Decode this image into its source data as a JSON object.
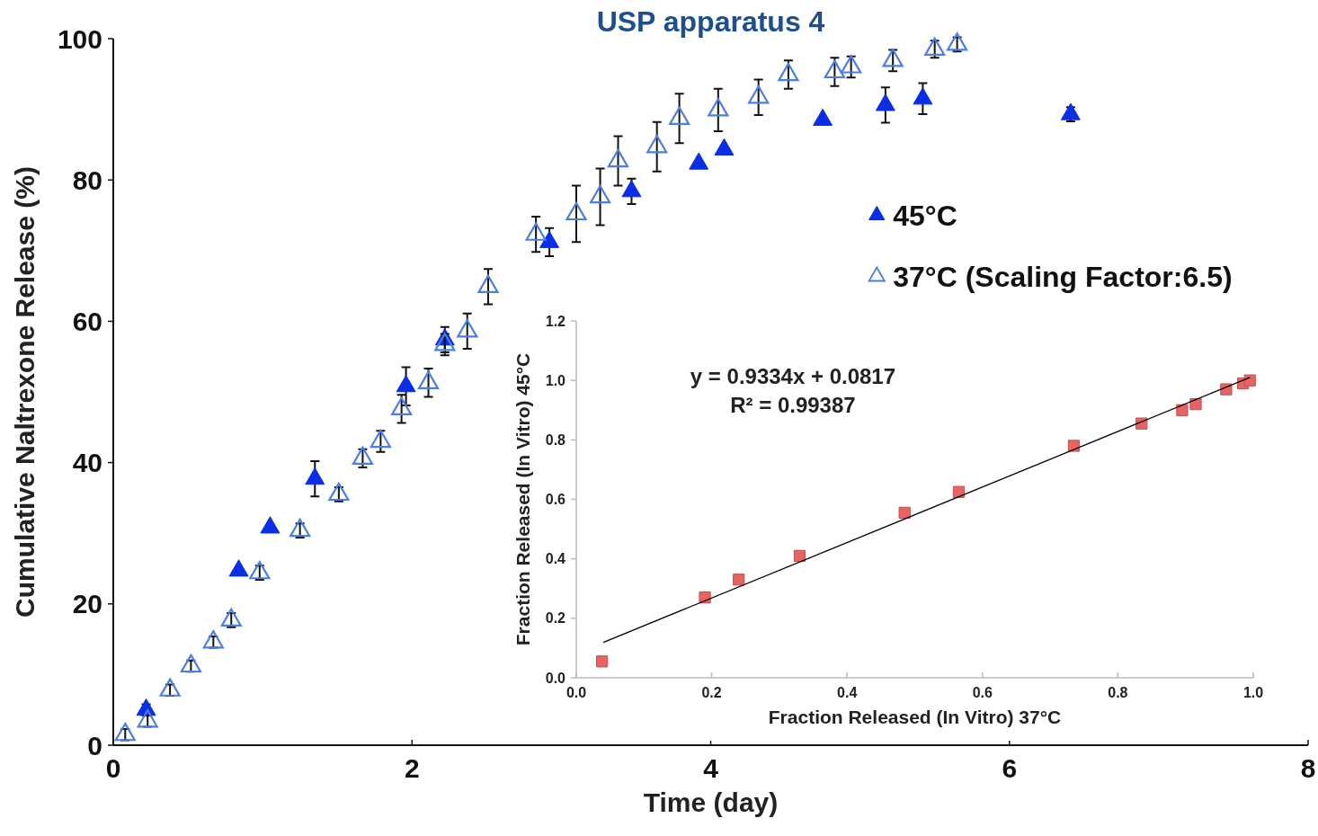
{
  "chart_data": [
    {
      "type": "scatter",
      "title": "USP apparatus 4",
      "xlabel": "Time (day)",
      "ylabel": "Cumulative Naltrexone Release (%)",
      "xlim": [
        0,
        8
      ],
      "xticks": [
        0,
        2,
        4,
        6,
        8
      ],
      "ylim": [
        0,
        100
      ],
      "yticks": [
        0,
        20,
        40,
        60,
        80,
        100
      ],
      "legend": "right",
      "marker": "triangle",
      "grid": false,
      "series": [
        {
          "name": "45°C",
          "color": "#0a2ee6",
          "x": [
            0.22,
            0.84,
            1.05,
            1.35,
            1.96,
            2.22,
            2.92,
            3.47,
            3.92,
            4.09,
            4.75,
            5.17,
            5.42,
            6.41
          ],
          "values": [
            5.0,
            24.7,
            30.8,
            37.7,
            50.8,
            57.4,
            71.2,
            78.4,
            82.3,
            84.3,
            88.5,
            90.6,
            91.5,
            89.3
          ],
          "errors": [
            0.8,
            null,
            null,
            2.5,
            2.7,
            1.8,
            2,
            1.8,
            null,
            null,
            null,
            2.5,
            2.2,
            1
          ]
        },
        {
          "name": "37°C (Scaling Factor:6.5)",
          "color": "#4a7ee0",
          "x": [
            0.08,
            0.23,
            0.38,
            0.52,
            0.67,
            0.79,
            0.98,
            1.25,
            1.51,
            1.67,
            1.79,
            1.93,
            2.11,
            2.22,
            2.37,
            2.51,
            2.83,
            3.1,
            3.26,
            3.38,
            3.64,
            3.79,
            4.05,
            4.32,
            4.52,
            4.83,
            4.94,
            5.22,
            5.5,
            5.65
          ],
          "values": [
            1.5,
            3.4,
            7.8,
            11.2,
            14.6,
            17.7,
            24.4,
            30.4,
            35.5,
            40.6,
            43.0,
            47.6,
            51.3,
            56.7,
            58.6,
            64.9,
            72.3,
            75.2,
            77.6,
            82.7,
            84.7,
            88.7,
            89.9,
            91.7,
            94.9,
            95.3,
            96.0,
            96.9,
            98.5,
            99.2
          ],
          "errors": [
            0.8,
            0.8,
            0.8,
            0.8,
            0.8,
            1,
            1,
            1,
            1,
            1.3,
            1.5,
            2,
            2,
            1.5,
            2.5,
            2.5,
            2.5,
            4,
            4,
            3.5,
            3.5,
            3.5,
            3,
            2.5,
            2,
            2,
            1.5,
            1.5,
            1.2,
            1
          ]
        }
      ]
    },
    {
      "type": "scatter",
      "xlabel": "Fraction Released (In Vitro) 37°C",
      "ylabel": "Fraction Released (In Vitro) 45°C",
      "xlim": [
        0,
        1
      ],
      "xticks": [
        {
          "value": 0,
          "label": "0.0"
        },
        0.2,
        0.4,
        0.6,
        0.8,
        {
          "value": 1,
          "label": "1.0"
        }
      ],
      "ylim": [
        0,
        1.2
      ],
      "yticks": [
        {
          "value": 0,
          "label": "0.0"
        },
        0.2,
        0.4,
        0.6,
        0.8,
        {
          "value": 1,
          "label": "1.0"
        },
        1.2
      ],
      "grid": false,
      "annotations": [
        "y = 0.9334x + 0.0817",
        "R² = 0.99387"
      ],
      "series": [
        {
          "color": "#e86464",
          "marker": "square",
          "x": [
            0.038,
            0.19,
            0.24,
            0.33,
            0.485,
            0.565,
            0.735,
            0.835,
            0.895,
            0.915,
            0.96,
            0.985,
            0.995
          ],
          "values": [
            0.055,
            0.27,
            0.33,
            0.41,
            0.555,
            0.625,
            0.78,
            0.855,
            0.9,
            0.92,
            0.97,
            0.99,
            1.0
          ]
        },
        {
          "type": "line",
          "marker": "none",
          "color": "#000000",
          "x": [
            0.04,
            0.995
          ],
          "values": [
            0.119,
            1.01
          ]
        }
      ]
    }
  ]
}
